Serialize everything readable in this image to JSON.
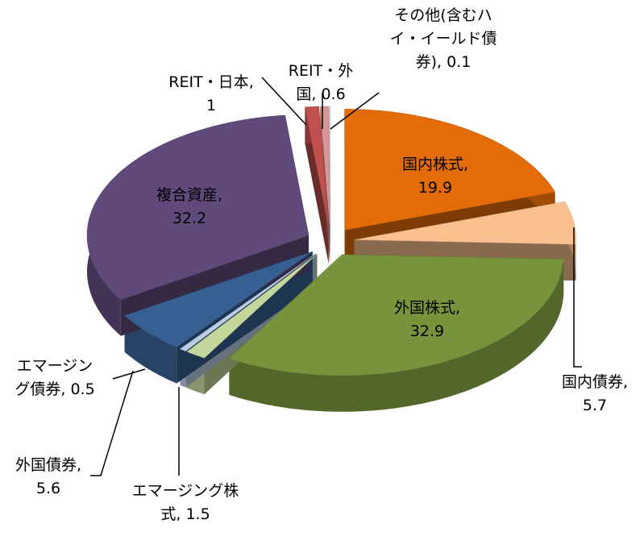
{
  "chart_data": {
    "type": "pie",
    "categories": [
      "国内株式",
      "国内債券",
      "外国株式",
      "エマージング株式",
      "エマージング債券",
      "外国債券",
      "複合資産",
      "REIT・日本",
      "REIT・外国",
      "その他(含むハイ・イールド債券)"
    ],
    "values": [
      19.9,
      5.7,
      32.9,
      1.5,
      0.5,
      5.6,
      32.2,
      1,
      0.6,
      0.1
    ],
    "colors": [
      "#e36c09",
      "#fac090",
      "#77933c",
      "#c3d69b",
      "#b9cde5",
      "#376092",
      "#604a7b",
      "#c0504d",
      "#d99694",
      "#d9d9d9"
    ]
  }
}
